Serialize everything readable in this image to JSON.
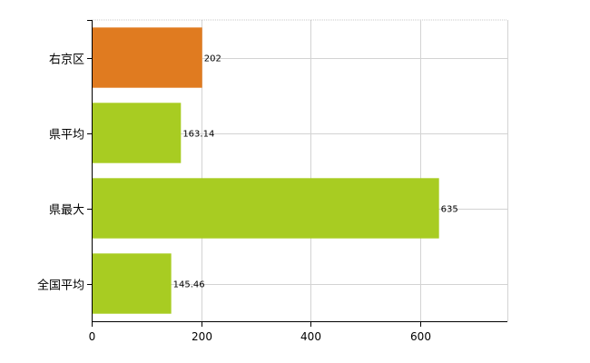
{
  "chart_data": {
    "type": "bar",
    "orientation": "horizontal",
    "categories": [
      "右京区",
      "県平均",
      "県最大",
      "全国平均"
    ],
    "values": [
      202,
      163.14,
      635,
      145.46
    ],
    "value_labels": [
      "202",
      "163.14",
      "635",
      "145.46"
    ],
    "bar_colors": [
      "#e07b20",
      "#a8cc22",
      "#a8cc22",
      "#a8cc22"
    ],
    "xlim": [
      0,
      760
    ],
    "x_ticks": [
      0,
      200,
      400,
      600
    ],
    "x_tick_labels": [
      "0",
      "200",
      "400",
      "600"
    ],
    "grid": true,
    "title": "",
    "xlabel": "",
    "ylabel": ""
  }
}
